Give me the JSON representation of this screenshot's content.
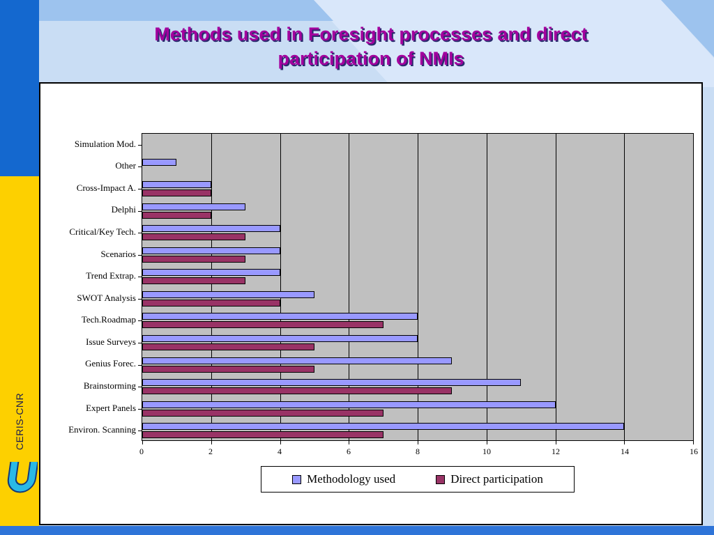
{
  "slide": {
    "title_line1": "Methods used in Foresight processes and direct",
    "title_line2": "participation of NMIs",
    "sidebar_text": "CERIS-CNR"
  },
  "colors": {
    "methodology_bar": "#9999ff",
    "participation_bar": "#993366",
    "plot_background": "#c0c0c0",
    "title_text": "#a3009e",
    "sidebar_blue": "#1468cf",
    "sidebar_yellow": "#fdd000"
  },
  "chart_data": {
    "type": "bar",
    "orientation": "horizontal",
    "title": "Methods used in Foresight processes and direct participation of NMIs",
    "categories": [
      "Simulation Mod.",
      "Other",
      "Cross-Impact A.",
      "Delphi",
      "Critical/Key Tech.",
      "Scenarios",
      "Trend Extrap.",
      "SWOT Analysis",
      "Tech.Roadmap",
      "Issue Surveys",
      "Genius Forec.",
      "Brainstorming",
      "Expert Panels",
      "Environ. Scanning"
    ],
    "series": [
      {
        "name": "Methodology used",
        "color": "#9999ff",
        "values": [
          0,
          1,
          2,
          3,
          4,
          4,
          4,
          5,
          8,
          8,
          9,
          11,
          12,
          14
        ]
      },
      {
        "name": "Direct participation",
        "color": "#993366",
        "values": [
          0,
          0,
          2,
          2,
          3,
          3,
          3,
          4,
          7,
          5,
          5,
          9,
          7,
          7
        ]
      }
    ],
    "xlim": [
      0,
      16
    ],
    "xticks": [
      0,
      2,
      4,
      6,
      8,
      10,
      12,
      14,
      16
    ],
    "grid": "vertical",
    "legend_position": "bottom"
  }
}
